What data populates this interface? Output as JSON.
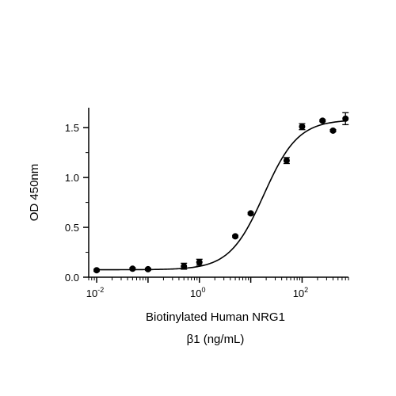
{
  "chart_data": {
    "type": "scatter",
    "title": "",
    "xlabel_lines": [
      "Biotinylated Human NRG1",
      "β1 (ng/mL)"
    ],
    "ylabel": "OD 450nm",
    "x_scale": "log",
    "xlim": [
      0.007,
      800
    ],
    "ylim": [
      0,
      1.7
    ],
    "x_ticks": [
      {
        "value": 0.01,
        "base": "10",
        "exp": "-2"
      },
      {
        "value": 1,
        "base": "10",
        "exp": "0"
      },
      {
        "value": 100,
        "base": "10",
        "exp": "2"
      }
    ],
    "y_ticks": [
      {
        "value": 0.0,
        "label": "0.0"
      },
      {
        "value": 0.5,
        "label": "0.5"
      },
      {
        "value": 1.0,
        "label": "1.0"
      },
      {
        "value": 1.5,
        "label": "1.5"
      }
    ],
    "grid": false,
    "points": [
      {
        "x": 0.01,
        "y": 0.07,
        "err": 0.01
      },
      {
        "x": 0.05,
        "y": 0.085,
        "err": 0.01
      },
      {
        "x": 0.1,
        "y": 0.08,
        "err": 0.01
      },
      {
        "x": 0.5,
        "y": 0.11,
        "err": 0.03
      },
      {
        "x": 1,
        "y": 0.15,
        "err": 0.03
      },
      {
        "x": 5,
        "y": 0.41,
        "err": 0.01
      },
      {
        "x": 10,
        "y": 0.64,
        "err": 0.01
      },
      {
        "x": 50,
        "y": 1.17,
        "err": 0.03
      },
      {
        "x": 100,
        "y": 1.51,
        "err": 0.03
      },
      {
        "x": 250,
        "y": 1.57,
        "err": 0.01
      },
      {
        "x": 400,
        "y": 1.47,
        "err": 0.01
      },
      {
        "x": 700,
        "y": 1.59,
        "err": 0.06
      }
    ],
    "fit": {
      "model": "4PL",
      "bottom": 0.075,
      "top": 1.58,
      "ec50": 18,
      "hill": 1.3
    },
    "colors": {
      "marker": "#000000",
      "line": "#000000",
      "axis": "#000000"
    }
  }
}
